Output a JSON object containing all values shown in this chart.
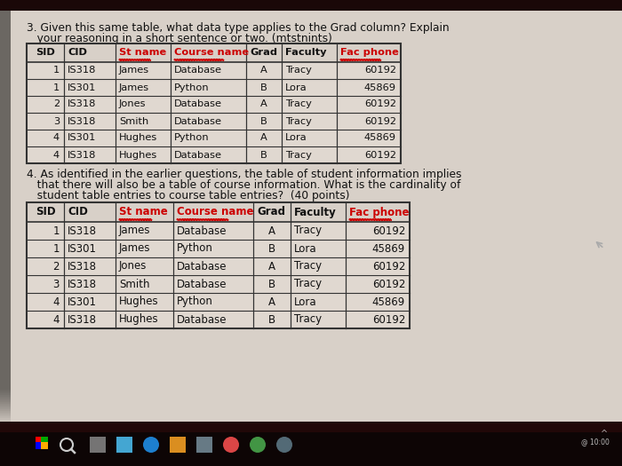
{
  "q3_line1": "3. Given this same table, what data type applies to the Grad column? Explain",
  "q3_line2": "   your reasoning in a short sentence or two. (mtstnints)",
  "q4_line1": "4. As identified in the earlier questions, the table of student information implies",
  "q4_line2": "   that there will also be a table of course information. What is the cardinality of",
  "q4_line3": "   student table entries to course table entries?  (40 points)",
  "col_labels": [
    "SID",
    "CID",
    "St name",
    "Course name",
    "Grad",
    "Faculty",
    "Fac phone"
  ],
  "table_rows": [
    [
      "1",
      "IS318",
      "James",
      "Database",
      "A",
      "Tracy",
      "60192"
    ],
    [
      "1",
      "IS301",
      "James",
      "Python",
      "B",
      "Lora",
      "45869"
    ],
    [
      "2",
      "IS318",
      "Jones",
      "Database",
      "A",
      "Tracy",
      "60192"
    ],
    [
      "3",
      "IS318",
      "Smith",
      "Database",
      "B",
      "Tracy",
      "60192"
    ],
    [
      "4",
      "IS301",
      "Hughes",
      "Python",
      "A",
      "Lora",
      "45869"
    ],
    [
      "4",
      "IS318",
      "Hughes",
      "Database",
      "B",
      "Tracy",
      "60192"
    ]
  ],
  "wavy_cols": [
    "St name",
    "Course name",
    "Fac phone"
  ],
  "red_cols_t1": [
    "St name",
    "Course name",
    "Fac phone"
  ],
  "red_cols_t2": [
    "St name",
    "Course name",
    "Fac phone"
  ],
  "col_widths1": [
    42,
    58,
    62,
    85,
    40,
    62,
    72
  ],
  "col_widths2": [
    42,
    58,
    65,
    90,
    42,
    62,
    72
  ],
  "screen_bg": "#1a0808",
  "paper_bg": "#d8d0c8",
  "table_bg": "#e8e0d8",
  "text_color": "#111111",
  "red_color": "#cc0000",
  "taskbar_color": "#1a0808",
  "taskbar_gradient_top": "#3a1010"
}
